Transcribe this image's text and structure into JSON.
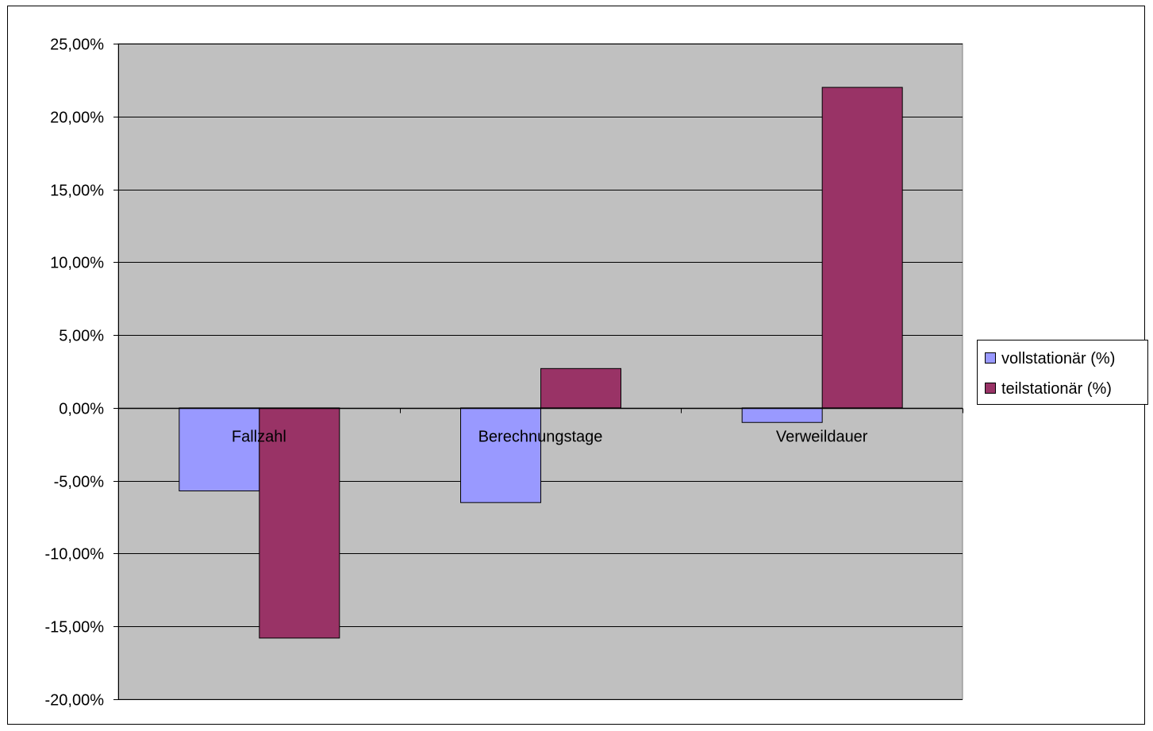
{
  "chart_data": {
    "type": "bar",
    "categories": [
      "Fallzahl",
      "Berechnungstage",
      "Verweildauer"
    ],
    "series": [
      {
        "name": "vollstationär (%)",
        "values": [
          -5.7,
          -6.5,
          -1.0
        ],
        "color": "#9999ff"
      },
      {
        "name": "teilstationär (%)",
        "values": [
          -15.8,
          2.7,
          22.0
        ],
        "color": "#993366"
      }
    ],
    "ylim": [
      -20,
      25
    ],
    "yticks": [
      25,
      20,
      15,
      10,
      5,
      0,
      -5,
      -10,
      -15,
      -20
    ],
    "ytick_labels": [
      "25,00%",
      "20,00%",
      "15,00%",
      "10,00%",
      "5,00%",
      "0,00%",
      "-5,00%",
      "-10,00%",
      "-15,00%",
      "-20,00%"
    ],
    "title": "",
    "xlabel": "",
    "ylabel": "",
    "grid": true,
    "plot_background": "#c0c0c0",
    "legend_position": "right"
  }
}
